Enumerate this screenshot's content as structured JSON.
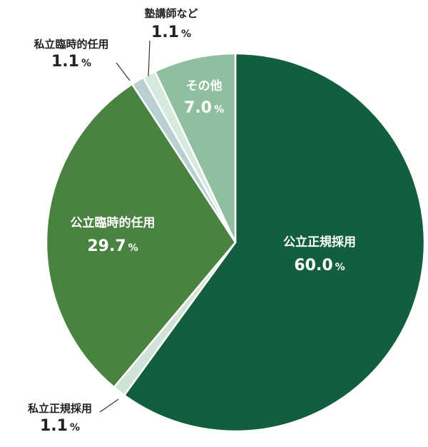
{
  "chart_data": {
    "type": "pie",
    "start": "top",
    "direction": "clockwise",
    "slices": [
      {
        "label": "公立正規採用",
        "value": 60.0,
        "value_text": "60.0",
        "unit": "%",
        "color": "#135e3e"
      },
      {
        "label": "私立正規採用",
        "value": 1.1,
        "value_text": "1.1",
        "unit": "%",
        "color": "#cfe3d6"
      },
      {
        "label": "公立臨時的任用",
        "value": 29.7,
        "value_text": "29.7",
        "unit": "%",
        "color": "#4a8241"
      },
      {
        "label": "私立臨時的任用",
        "value": 1.1,
        "value_text": "1.1",
        "unit": "%",
        "color": "#b9cfd1"
      },
      {
        "label": "塾講師など",
        "value": 1.1,
        "value_text": "1.1",
        "unit": "%",
        "color": "#d6e9dd"
      },
      {
        "label": "その他",
        "value": 7.0,
        "value_text": "7.0",
        "unit": "%",
        "color": "#8fbf9f"
      }
    ]
  }
}
